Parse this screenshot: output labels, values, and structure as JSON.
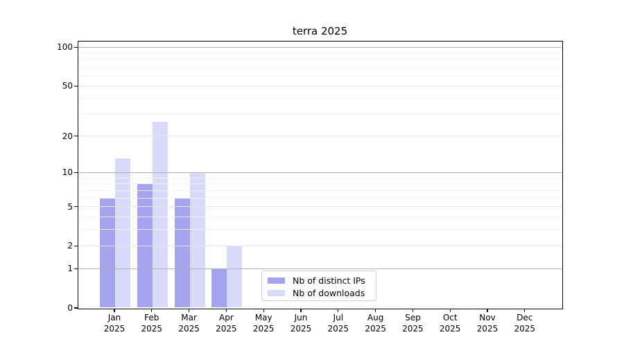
{
  "chart_data": {
    "type": "bar",
    "title": "terra 2025",
    "months": [
      "Jan",
      "Feb",
      "Mar",
      "Apr",
      "May",
      "Jun",
      "Jul",
      "Aug",
      "Sep",
      "Oct",
      "Nov",
      "Dec"
    ],
    "year": "2025",
    "series": [
      {
        "name": "Nb of distinct IPs",
        "color": "#a3a3f0",
        "values": [
          6,
          8,
          6,
          1,
          0,
          0,
          0,
          0,
          0,
          0,
          0,
          0
        ]
      },
      {
        "name": "Nb of downloads",
        "color": "#d9d9fa",
        "values": [
          13,
          26,
          10,
          2,
          0,
          0,
          0,
          0,
          0,
          0,
          0,
          0
        ]
      }
    ],
    "y_axis": {
      "scale": "log10(v+1)",
      "tick_labels": [
        0,
        1,
        2,
        5,
        10,
        20,
        50,
        100
      ],
      "decade_ticks": [
        1,
        10,
        100
      ],
      "mid_ticks": [
        2,
        5,
        20,
        50
      ],
      "minor_ticks": [
        3,
        4,
        6,
        7,
        8,
        9,
        30,
        40,
        60,
        70,
        80,
        90
      ],
      "range": [
        0,
        111
      ]
    },
    "legend_position": "bottom-center",
    "grid": "horizontal"
  }
}
